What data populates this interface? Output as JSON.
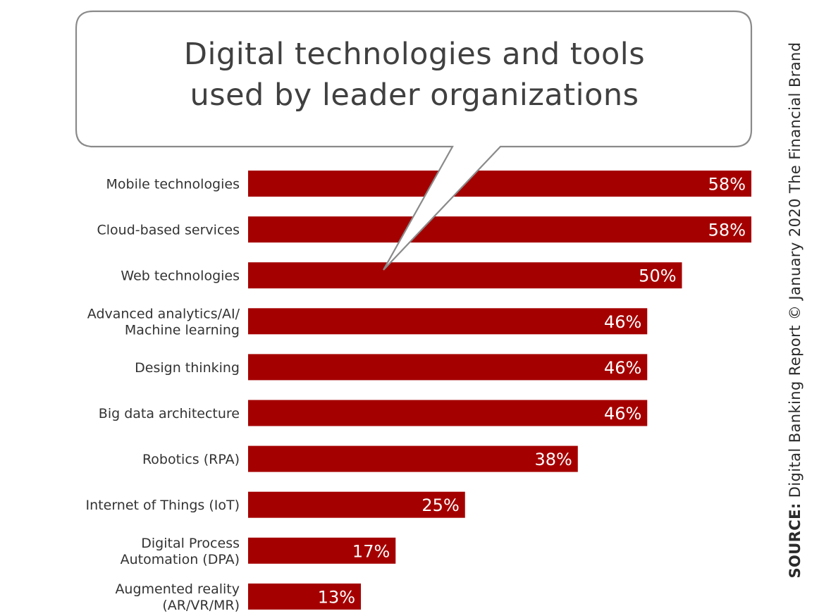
{
  "title": {
    "line1": "Digital technologies and tools",
    "line2": "used by leader organizations"
  },
  "source": {
    "label": "SOURCE:",
    "text": "Digital Banking Report © January 2020 The Financial Brand"
  },
  "colors": {
    "bar": "#a50000",
    "bar_label": "#ffffff",
    "category_text": "#333333",
    "bubble_stroke": "#8a8a8a",
    "title_text": "#404040"
  },
  "chart_data": {
    "type": "bar",
    "orientation": "horizontal",
    "title": "Digital technologies and tools used by leader organizations",
    "categories": [
      [
        "Mobile technologies"
      ],
      [
        "Cloud-based services"
      ],
      [
        "Web technologies"
      ],
      [
        "Advanced analytics/AI/",
        "Machine learning"
      ],
      [
        "Design thinking"
      ],
      [
        "Big data architecture"
      ],
      [
        "Robotics (RPA)"
      ],
      [
        "Internet of Things (IoT)"
      ],
      [
        "Digital Process",
        "Automation (DPA)"
      ],
      [
        "Augmented reality",
        "(AR/VR/MR)"
      ]
    ],
    "values": [
      58,
      58,
      50,
      46,
      46,
      46,
      38,
      25,
      17,
      13
    ],
    "value_labels": [
      "58%",
      "58%",
      "50%",
      "46%",
      "46%",
      "46%",
      "38%",
      "25%",
      "17%",
      "13%"
    ],
    "units": "%",
    "xlim": [
      0,
      58
    ],
    "xlabel": "",
    "ylabel": "",
    "grid": false,
    "legend": "none"
  }
}
